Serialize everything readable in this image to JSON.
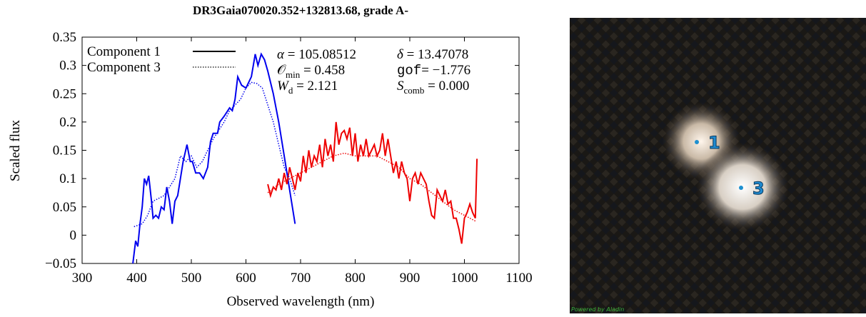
{
  "chart_data": {
    "type": "line",
    "title": "DR3Gaia070020.352+132813.68, grade A-",
    "x_label": "Observed wavelength (nm)",
    "y_label": "Scaled flux",
    "xlim": [
      300,
      1100
    ],
    "xticks": [
      300,
      400,
      500,
      600,
      700,
      800,
      900,
      1000,
      1100
    ],
    "ylim": [
      -0.05,
      0.35
    ],
    "yticks": [
      {
        "value": -0.05,
        "label": "−0.05"
      },
      0,
      0.05,
      0.1,
      0.15,
      0.2,
      0.25,
      0.3,
      0.35
    ],
    "legend_position": "upper left",
    "legend_color": "#000000",
    "series": [
      {
        "name": "Component 1",
        "dash": "solid",
        "segments": [
          {
            "color": "#0000ee",
            "x": [
              393,
              398,
              402,
              406,
              410,
              414,
              418,
              422,
              427,
              430,
              435,
              440,
              445,
              450,
              455,
              460,
              465,
              470,
              475,
              480,
              485,
              492,
              498,
              502,
              508,
              515,
              522,
              530,
              535,
              540,
              548,
              552,
              560,
              570,
              575,
              580,
              585,
              592,
              600,
              610,
              617,
              622,
              628,
              634,
              640,
              650,
              660,
              670,
              680,
              690
            ],
            "values": [
              -0.05,
              -0.01,
              -0.02,
              0.02,
              0.05,
              0.1,
              0.09,
              0.105,
              0.06,
              0.03,
              0.035,
              0.03,
              0.05,
              0.045,
              0.085,
              0.06,
              0.02,
              0.06,
              0.07,
              0.1,
              0.13,
              0.16,
              0.13,
              0.13,
              0.11,
              0.11,
              0.1,
              0.12,
              0.165,
              0.18,
              0.18,
              0.2,
              0.21,
              0.225,
              0.22,
              0.24,
              0.28,
              0.265,
              0.26,
              0.28,
              0.32,
              0.3,
              0.32,
              0.31,
              0.29,
              0.25,
              0.2,
              0.14,
              0.08,
              0.02
            ]
          },
          {
            "color": "#ee0000",
            "x": [
              640,
              645,
              650,
              655,
              660,
              665,
              670,
              675,
              680,
              685,
              690,
              695,
              700,
              705,
              710,
              715,
              720,
              725,
              730,
              735,
              740,
              745,
              750,
              755,
              760,
              765,
              770,
              775,
              780,
              785,
              790,
              795,
              800,
              805,
              810,
              815,
              820,
              825,
              830,
              835,
              840,
              845,
              850,
              855,
              860,
              865,
              870,
              875,
              880,
              885,
              890,
              895,
              900,
              905,
              910,
              915,
              920,
              925,
              930,
              935,
              940,
              945,
              950,
              955,
              960,
              965,
              970,
              975,
              980,
              985,
              990,
              995,
              1000,
              1005,
              1010,
              1015,
              1020,
              1023
            ],
            "values": [
              0.09,
              0.07,
              0.085,
              0.08,
              0.1,
              0.08,
              0.11,
              0.09,
              0.12,
              0.1,
              0.08,
              0.11,
              0.095,
              0.14,
              0.11,
              0.15,
              0.12,
              0.14,
              0.13,
              0.16,
              0.12,
              0.17,
              0.14,
              0.16,
              0.13,
              0.2,
              0.16,
              0.18,
              0.185,
              0.17,
              0.19,
              0.14,
              0.18,
              0.13,
              0.16,
              0.14,
              0.17,
              0.14,
              0.15,
              0.16,
              0.14,
              0.15,
              0.18,
              0.14,
              0.17,
              0.14,
              0.11,
              0.13,
              0.1,
              0.13,
              0.11,
              0.1,
              0.06,
              0.1,
              0.11,
              0.09,
              0.11,
              0.1,
              0.09,
              0.06,
              0.035,
              0.03,
              0.08,
              0.07,
              0.06,
              0.08,
              0.055,
              0.06,
              0.03,
              0.03,
              0.01,
              -0.015,
              0.03,
              0.04,
              0.055,
              0.04,
              0.03,
              0.135
            ]
          }
        ]
      },
      {
        "name": "Component 3",
        "dash": "dotted",
        "segments": [
          {
            "color": "#0000ee",
            "x": [
              395,
              410,
              420,
              430,
              440,
              450,
              460,
              470,
              480,
              490,
              500,
              510,
              520,
              530,
              540,
              550,
              560,
              570,
              580,
              590,
              600,
              610,
              620,
              630,
              640,
              650,
              660,
              670,
              680,
              690
            ],
            "values": [
              0.015,
              0.02,
              0.035,
              0.06,
              0.065,
              0.07,
              0.085,
              0.1,
              0.14,
              0.13,
              0.14,
              0.12,
              0.13,
              0.15,
              0.17,
              0.185,
              0.2,
              0.22,
              0.23,
              0.24,
              0.26,
              0.27,
              0.268,
              0.26,
              0.23,
              0.2,
              0.16,
              0.12,
              0.1,
              0.07
            ]
          },
          {
            "color": "#ee0000",
            "x": [
              640,
              660,
              680,
              700,
              720,
              740,
              760,
              780,
              800,
              820,
              840,
              860,
              880,
              900,
              920,
              940,
              960,
              980,
              1000,
              1020
            ],
            "values": [
              0.075,
              0.09,
              0.1,
              0.11,
              0.12,
              0.13,
              0.14,
              0.145,
              0.14,
              0.14,
              0.14,
              0.13,
              0.12,
              0.1,
              0.09,
              0.075,
              0.06,
              0.045,
              0.035,
              0.025
            ]
          }
        ]
      }
    ],
    "annotations": [
      {
        "symbol": "α",
        "sub": "",
        "text": " = 105.08512"
      },
      {
        "symbol": "δ",
        "sub": "",
        "text": " = 13.47078"
      },
      {
        "symbol": "𝒪",
        "sub": "min",
        "text": " = 0.458"
      },
      {
        "symbol": "gof",
        "sub": "",
        "text": "= −1.776"
      },
      {
        "symbol": "W",
        "sub": "d",
        "text": " = 2.121"
      },
      {
        "symbol": "S",
        "sub": "comb",
        "text": " = 0.000"
      }
    ]
  },
  "image": {
    "labels": [
      "1",
      "3"
    ],
    "credit": "Powered by Aladin"
  }
}
